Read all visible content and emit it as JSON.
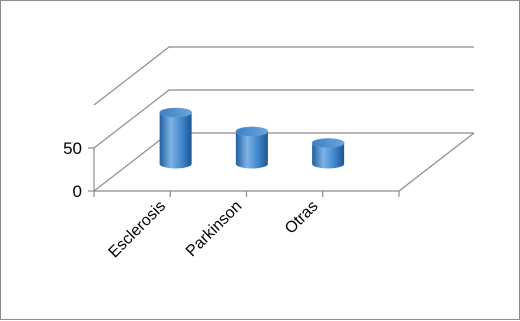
{
  "chart_data": {
    "type": "bar",
    "style": "3d-cylinder",
    "categories": [
      "Esclerosis",
      "Parkinson",
      "Otras"
    ],
    "values": [
      49,
      31,
      20
    ],
    "ylim": [
      0,
      100
    ],
    "yticks": [
      0,
      50
    ],
    "grid": true,
    "legend": "none",
    "bar_color": "#3d86cc"
  }
}
